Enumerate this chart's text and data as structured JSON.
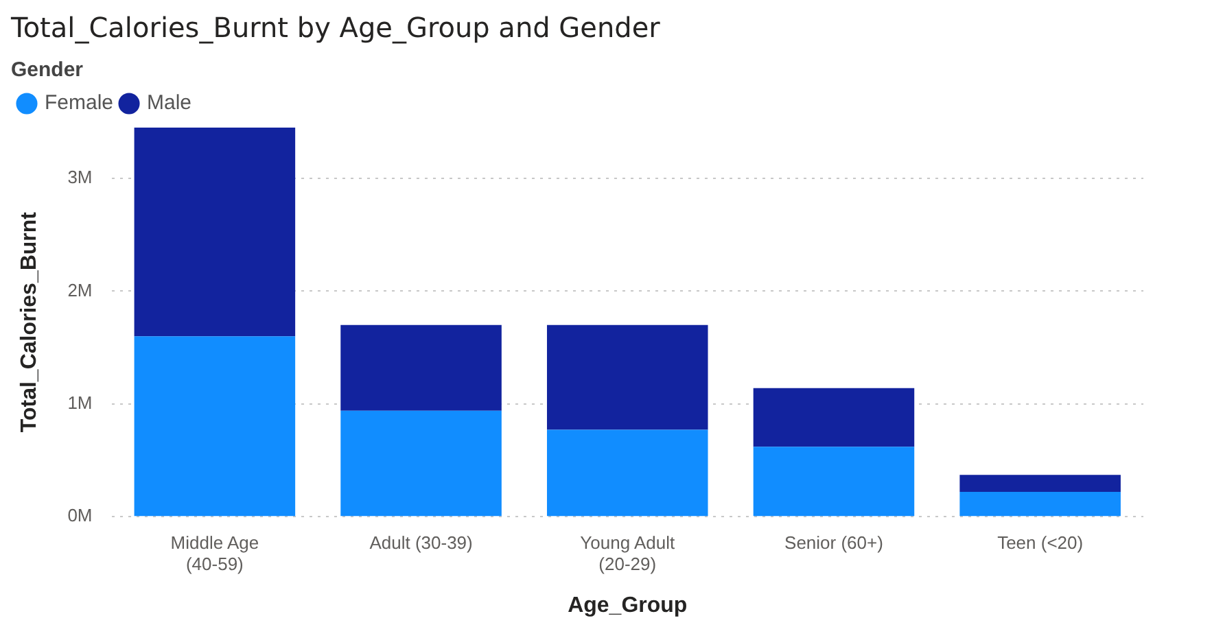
{
  "chart_data": {
    "type": "bar",
    "title": "Total_Calories_Burnt by Age_Group and Gender",
    "xlabel": "Age_Group",
    "ylabel": "Total_Calories_Burnt",
    "legend_title": "Gender",
    "categories": [
      "Middle Age (40-59)",
      "Adult (30-39)",
      "Young Adult (20-29)",
      "Senior (60+)",
      "Teen (<20)"
    ],
    "series": [
      {
        "name": "Female",
        "color": "#118dff",
        "values": [
          1600000,
          940000,
          770000,
          620000,
          220000
        ]
      },
      {
        "name": "Male",
        "color": "#12239e",
        "values": [
          1850000,
          760000,
          930000,
          520000,
          150000
        ]
      }
    ],
    "stacked": true,
    "ylim": [
      0,
      3450000
    ],
    "yticks": [
      {
        "value": 0,
        "label": "0M"
      },
      {
        "value": 1000000,
        "label": "1M"
      },
      {
        "value": 2000000,
        "label": "2M"
      },
      {
        "value": 3000000,
        "label": "3M"
      }
    ],
    "grid": "y",
    "legend": "top left",
    "marker": "circle"
  }
}
